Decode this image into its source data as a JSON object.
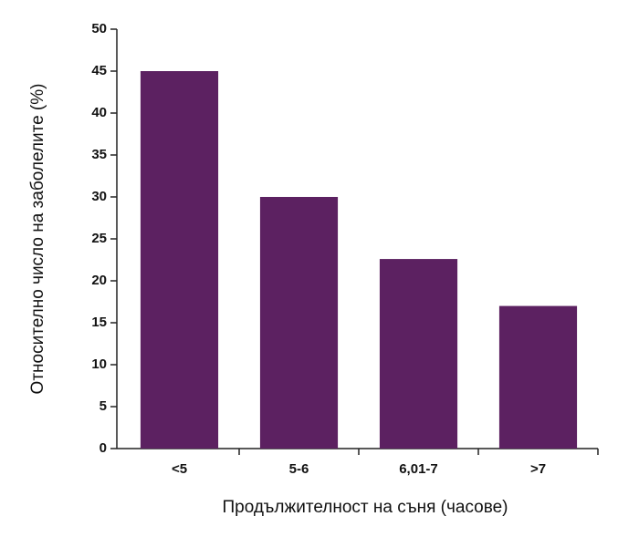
{
  "chart_data": {
    "type": "bar",
    "categories": [
      "<5",
      "5-6",
      "6,01-7",
      ">7"
    ],
    "values": [
      45,
      30,
      22.6,
      17
    ],
    "color": "#5c2161",
    "xlabel": "Продължителност на съня (часове)",
    "ylabel": "Относително число на заболелите (%)",
    "ylim": [
      0,
      50
    ],
    "yticks": [
      0,
      5,
      10,
      15,
      20,
      25,
      30,
      35,
      40,
      45,
      50
    ]
  }
}
